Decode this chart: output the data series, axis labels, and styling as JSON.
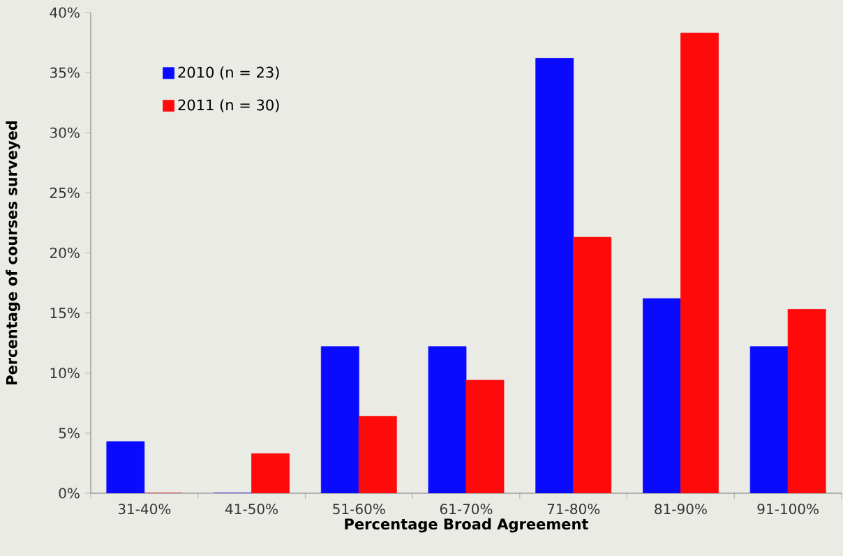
{
  "chart_data": {
    "type": "bar",
    "xlabel": "Percentage Broad Agreement",
    "ylabel": "Percentage of courses surveyed",
    "categories": [
      "31-40%",
      "41-50%",
      "51-60%",
      "61-70%",
      "71-80%",
      "81-90%",
      "91-100%"
    ],
    "series": [
      {
        "name": "2010 (n = 23)",
        "color": "#0a0aff",
        "values": [
          4.3,
          0,
          12.2,
          12.2,
          36.2,
          16.2,
          12.2
        ]
      },
      {
        "name": "2011 (n = 30)",
        "color": "#ff0a0a",
        "values": [
          0,
          3.3,
          6.4,
          9.4,
          21.3,
          38.3,
          15.3
        ]
      }
    ],
    "ylim": [
      0,
      40
    ],
    "yticks": [
      {
        "value": 0,
        "label": "0%"
      },
      {
        "value": 5,
        "label": "5%"
      },
      {
        "value": 10,
        "label": "10%"
      },
      {
        "value": 15,
        "label": "15%"
      },
      {
        "value": 20,
        "label": "20%"
      },
      {
        "value": 25,
        "label": "25%"
      },
      {
        "value": 30,
        "label": "30%"
      },
      {
        "value": 35,
        "label": "35%"
      },
      {
        "value": 40,
        "label": "40%"
      }
    ],
    "grid": false,
    "legend": "top left"
  }
}
